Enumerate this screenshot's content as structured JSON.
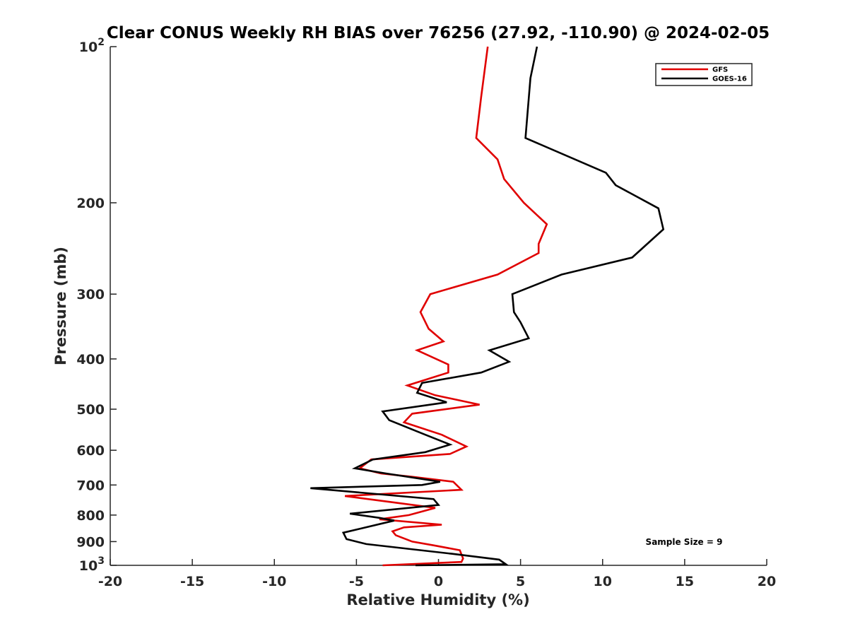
{
  "chart_data": {
    "type": "line",
    "title": "Clear CONUS Weekly RH BIAS over 76256 (27.92, -110.90) @ 2024-02-05",
    "xlabel": "Relative Humidity (%)",
    "ylabel": "Pressure (mb)",
    "xlim": [
      -20,
      20
    ],
    "ylim": [
      100,
      1000
    ],
    "yscale": "log",
    "y_reversed": true,
    "xticks": [
      "-20",
      "-15",
      "-10",
      "-5",
      "0",
      "5",
      "10",
      "15",
      "20"
    ],
    "yticks": [
      {
        "value": 100,
        "base": "10",
        "exp": "2"
      },
      {
        "value": 200,
        "label": "200"
      },
      {
        "value": 300,
        "label": "300"
      },
      {
        "value": 400,
        "label": "400"
      },
      {
        "value": 500,
        "label": "500"
      },
      {
        "value": 600,
        "label": "600"
      },
      {
        "value": 700,
        "label": "700"
      },
      {
        "value": 800,
        "label": "800"
      },
      {
        "value": 900,
        "label": "900"
      },
      {
        "value": 1000,
        "base": "10",
        "exp": "3"
      }
    ],
    "legend_position": "top-right",
    "annotation": "Sample Size = 9",
    "series": [
      {
        "name": "GFS",
        "color": "#e00000",
        "points": [
          [
            3.0,
            100
          ],
          [
            2.6,
            125
          ],
          [
            2.3,
            150
          ],
          [
            3.6,
            165
          ],
          [
            4.0,
            180
          ],
          [
            5.2,
            200
          ],
          [
            6.6,
            220
          ],
          [
            6.1,
            240
          ],
          [
            6.1,
            250
          ],
          [
            3.6,
            275
          ],
          [
            -0.5,
            300
          ],
          [
            -1.1,
            325
          ],
          [
            -0.6,
            350
          ],
          [
            0.3,
            370
          ],
          [
            -1.3,
            385
          ],
          [
            0.6,
            410
          ],
          [
            0.6,
            425
          ],
          [
            -1.9,
            450
          ],
          [
            -0.2,
            470
          ],
          [
            2.5,
            490
          ],
          [
            -1.6,
            510
          ],
          [
            -2.1,
            530
          ],
          [
            0.2,
            560
          ],
          [
            1.7,
            590
          ],
          [
            0.7,
            610
          ],
          [
            -4.1,
            625
          ],
          [
            -4.8,
            650
          ],
          [
            -3.5,
            665
          ],
          [
            -1.6,
            675
          ],
          [
            0.9,
            690
          ],
          [
            1.4,
            715
          ],
          [
            -5.7,
            735
          ],
          [
            -2.9,
            755
          ],
          [
            -0.2,
            775
          ],
          [
            -1.8,
            800
          ],
          [
            -3.6,
            815
          ],
          [
            0.2,
            835
          ],
          [
            -2.1,
            845
          ],
          [
            -2.8,
            860
          ],
          [
            -2.6,
            875
          ],
          [
            -1.6,
            900
          ],
          [
            -0.3,
            915
          ],
          [
            1.3,
            935
          ],
          [
            1.5,
            970
          ],
          [
            1.4,
            985
          ],
          [
            -3.4,
            1000
          ]
        ]
      },
      {
        "name": "GOES-16",
        "color": "#000000",
        "points": [
          [
            6.0,
            100
          ],
          [
            5.6,
            115
          ],
          [
            5.3,
            150
          ],
          [
            10.2,
            175
          ],
          [
            10.8,
            185
          ],
          [
            13.4,
            205
          ],
          [
            13.7,
            225
          ],
          [
            11.8,
            255
          ],
          [
            7.5,
            275
          ],
          [
            4.5,
            300
          ],
          [
            4.6,
            325
          ],
          [
            5.0,
            340
          ],
          [
            5.5,
            365
          ],
          [
            3.1,
            385
          ],
          [
            4.3,
            405
          ],
          [
            2.6,
            425
          ],
          [
            -1.0,
            445
          ],
          [
            -1.3,
            465
          ],
          [
            0.5,
            485
          ],
          [
            -3.4,
            505
          ],
          [
            -3.0,
            525
          ],
          [
            -0.8,
            560
          ],
          [
            0.7,
            585
          ],
          [
            -0.8,
            605
          ],
          [
            -4.0,
            625
          ],
          [
            -5.1,
            650
          ],
          [
            -3.2,
            665
          ],
          [
            0.1,
            690
          ],
          [
            -1.0,
            700
          ],
          [
            -7.8,
            710
          ],
          [
            -0.3,
            745
          ],
          [
            0.0,
            765
          ],
          [
            -5.4,
            795
          ],
          [
            -3.6,
            810
          ],
          [
            -2.7,
            820
          ],
          [
            -5.8,
            865
          ],
          [
            -5.6,
            890
          ],
          [
            -4.4,
            910
          ],
          [
            0.8,
            950
          ],
          [
            3.7,
            975
          ],
          [
            4.1,
            995
          ],
          [
            -1.4,
            1000
          ]
        ]
      }
    ]
  }
}
